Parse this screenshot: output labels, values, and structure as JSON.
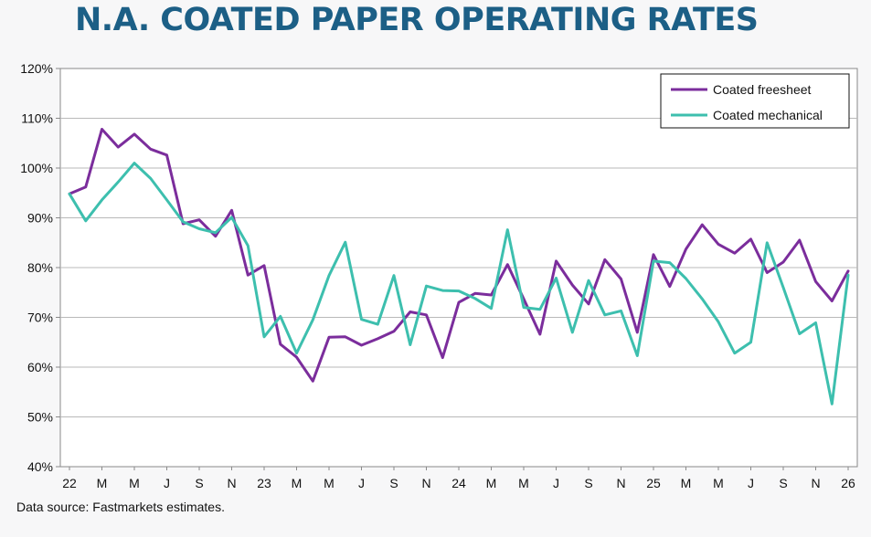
{
  "title": "N.A. COATED PAPER OPERATING RATES",
  "source": "Data source: Fastmarkets estimates.",
  "chart_data": {
    "type": "line",
    "ylim": [
      40,
      120
    ],
    "yticks": [
      40,
      50,
      60,
      70,
      80,
      90,
      100,
      110,
      120
    ],
    "ytick_labels": [
      "40%",
      "50%",
      "60%",
      "70%",
      "80%",
      "90%",
      "100%",
      "110%",
      "120%"
    ],
    "grid": true,
    "legend_position": "top-right",
    "x_tick_labels": [
      "22",
      "M",
      "M",
      "J",
      "S",
      "N",
      "23",
      "M",
      "M",
      "J",
      "S",
      "N",
      "24",
      "M",
      "M",
      "J",
      "S",
      "N",
      "25",
      "M",
      "M",
      "J",
      "S",
      "N",
      "26"
    ],
    "colors": {
      "Coated freesheet": "#7b2d9c",
      "Coated mechanical": "#3dbfae"
    },
    "series": [
      {
        "name": "Coated freesheet",
        "values": [
          94.8,
          96.2,
          107.8,
          104.2,
          106.8,
          103.8,
          102.6,
          88.8,
          89.6,
          86.3,
          91.5,
          78.5,
          80.4,
          64.6,
          62.0,
          57.2,
          66.0,
          66.1,
          64.4,
          65.7,
          67.2,
          71.1,
          70.5,
          61.9,
          73.0,
          74.8,
          74.5,
          80.6,
          73.7,
          66.6,
          81.3,
          76.5,
          72.7,
          81.6,
          77.7,
          67.0,
          82.6,
          76.2,
          83.7,
          88.6,
          84.7,
          82.9,
          85.7,
          79.0,
          81.1,
          85.5,
          77.2,
          73.3,
          79.3
        ]
      },
      {
        "name": "Coated mechanical",
        "values": [
          94.8,
          89.4,
          93.6,
          97.2,
          101.0,
          97.9,
          93.6,
          89.2,
          87.8,
          87.0,
          90.1,
          84.4,
          66.1,
          70.2,
          62.8,
          69.5,
          78.4,
          85.1,
          69.6,
          68.6,
          78.4,
          64.5,
          76.3,
          75.4,
          75.3,
          73.8,
          71.8,
          87.6,
          72.0,
          71.6,
          77.9,
          67.0,
          77.4,
          70.5,
          71.3,
          62.3,
          81.3,
          81.0,
          77.8,
          73.7,
          69.1,
          62.8,
          65.0,
          85.0,
          76.0,
          66.7,
          68.9,
          52.6,
          78.5
        ]
      }
    ]
  }
}
